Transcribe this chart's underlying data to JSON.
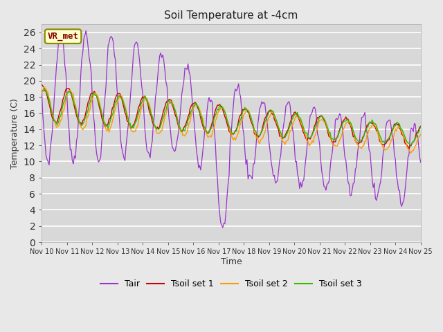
{
  "title": "Soil Temperature at -4cm",
  "xlabel": "Time",
  "ylabel": "Temperature (C)",
  "ylim": [
    0,
    27
  ],
  "xlim": [
    0,
    360
  ],
  "fig_bg": "#e8e8e8",
  "plot_bg": "#d8d8d8",
  "line_colors": {
    "Tair": "#9933cc",
    "Tsoil1": "#cc0000",
    "Tsoil2": "#ff9900",
    "Tsoil3": "#33bb00"
  },
  "legend_labels": [
    "Tair",
    "Tsoil set 1",
    "Tsoil set 2",
    "Tsoil set 3"
  ],
  "annotation_text": "VR_met",
  "annotation_color": "#880000",
  "annotation_bg": "#ffffcc",
  "annotation_edge": "#888800",
  "x_tick_labels": [
    "Nov 10",
    "Nov 11",
    "Nov 12",
    "Nov 13",
    "Nov 14",
    "Nov 15",
    "Nov 16",
    "Nov 17",
    "Nov 18",
    "Nov 19",
    "Nov 20",
    "Nov 21",
    "Nov 22",
    "Nov 23",
    "Nov 24",
    "Nov 25"
  ],
  "x_tick_positions": [
    0,
    24,
    48,
    72,
    96,
    120,
    144,
    168,
    192,
    216,
    240,
    264,
    288,
    312,
    336,
    360
  ],
  "y_ticks": [
    0,
    2,
    4,
    6,
    8,
    10,
    12,
    14,
    16,
    18,
    20,
    22,
    24,
    26
  ]
}
